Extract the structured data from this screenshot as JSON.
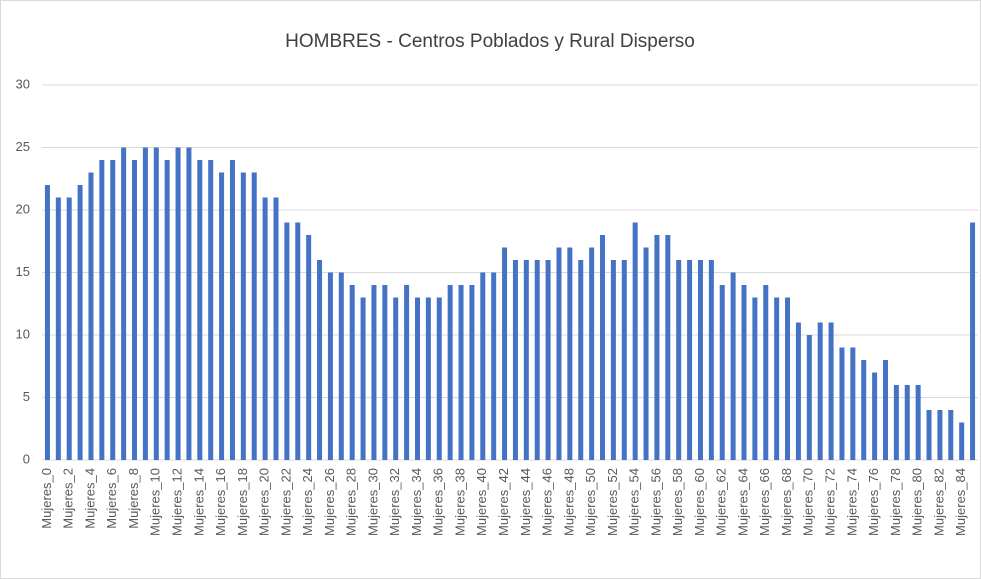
{
  "chart_data": {
    "type": "bar",
    "title": "HOMBRES - Centros Poblados y Rural Disperso",
    "categories": [
      "Mujeres_0",
      null,
      "Mujeres_2",
      null,
      "Mujeres_4",
      null,
      "Mujeres_6",
      null,
      "Mujeres_8",
      null,
      "Mujeres_10",
      null,
      "Mujeres_12",
      null,
      "Mujeres_14",
      null,
      "Mujeres_16",
      null,
      "Mujeres_18",
      null,
      "Mujeres_20",
      null,
      "Mujeres_22",
      null,
      "Mujeres_24",
      null,
      "Mujeres_26",
      null,
      "Mujeres_28",
      null,
      "Mujeres_30",
      null,
      "Mujeres_32",
      null,
      "Mujeres_34",
      null,
      "Mujeres_36",
      null,
      "Mujeres_38",
      null,
      "Mujeres_40",
      null,
      "Mujeres_42",
      null,
      "Mujeres_44",
      null,
      "Mujeres_46",
      null,
      "Mujeres_48",
      null,
      "Mujeres_50",
      null,
      "Mujeres_52",
      null,
      "Mujeres_54",
      null,
      "Mujeres_56",
      null,
      "Mujeres_58",
      null,
      "Mujeres_60",
      null,
      "Mujeres_62",
      null,
      "Mujeres_64",
      null,
      "Mujeres_66",
      null,
      "Mujeres_68",
      null,
      "Mujeres_70",
      null,
      "Mujeres_72",
      null,
      "Mujeres_74",
      null,
      "Mujeres_76",
      null,
      "Mujeres_78",
      null,
      "Mujeres_80",
      null,
      "Mujeres_82",
      null,
      "Mujeres_84",
      null
    ],
    "values": [
      22,
      21,
      21,
      22,
      23,
      24,
      24,
      25,
      24,
      25,
      25,
      24,
      25,
      25,
      24,
      24,
      23,
      24,
      23,
      23,
      21,
      21,
      19,
      19,
      18,
      16,
      15,
      15,
      14,
      13,
      14,
      14,
      13,
      14,
      13,
      13,
      13,
      14,
      14,
      14,
      15,
      15,
      17,
      16,
      16,
      16,
      16,
      17,
      17,
      16,
      17,
      18,
      16,
      16,
      19,
      17,
      18,
      18,
      16,
      16,
      16,
      16,
      14,
      15,
      14,
      13,
      14,
      13,
      13,
      11,
      10,
      11,
      11,
      9,
      9,
      8,
      7,
      8,
      6,
      6,
      6,
      4,
      4,
      4,
      3,
      19
    ],
    "color": "#4472c4",
    "ylim": [
      0,
      30
    ],
    "yticks": [
      0,
      5,
      10,
      15,
      20,
      25,
      30
    ],
    "grid": true
  }
}
